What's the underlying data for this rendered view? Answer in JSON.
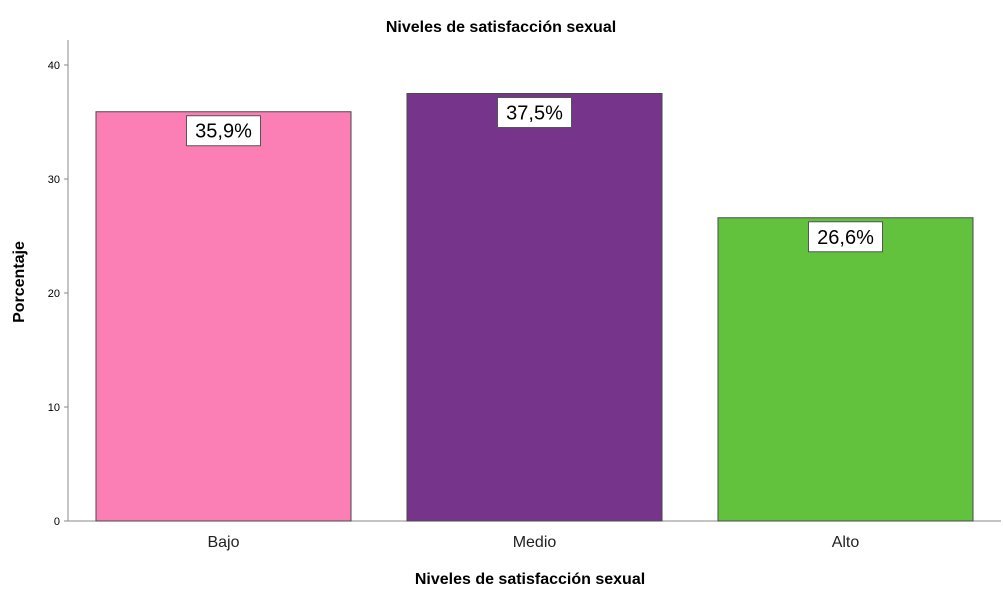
{
  "chart_data": {
    "type": "bar",
    "title": "Niveles de satisfacción sexual",
    "xlabel": "Niveles de satisfacción sexual",
    "ylabel": "Porcentaje",
    "categories": [
      "Bajo",
      "Medio",
      "Alto"
    ],
    "values": [
      35.9,
      37.5,
      26.6
    ],
    "data_labels": [
      "35,9%",
      "37,5%",
      "26,6%"
    ],
    "colors": [
      "#fb7eb4",
      "#76348a",
      "#62c23e"
    ],
    "ylim": [
      0,
      40
    ],
    "yticks": [
      "0",
      "10",
      "20",
      "30",
      "40"
    ],
    "grid": false,
    "legend": "none"
  }
}
